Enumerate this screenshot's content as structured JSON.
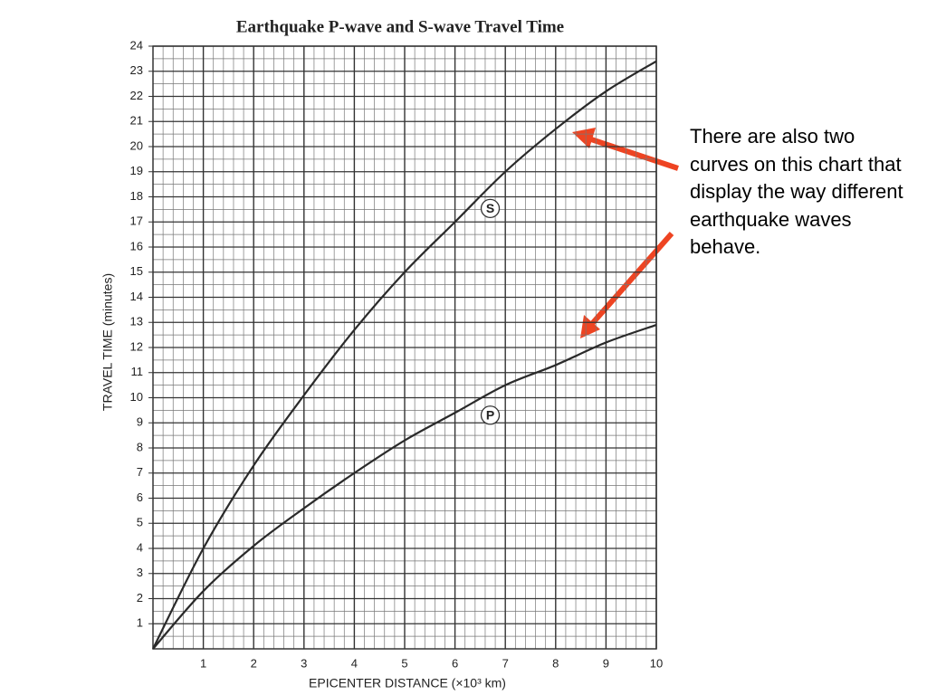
{
  "chart_data": {
    "type": "line",
    "title": "Earthquake P-wave and S-wave Travel Time",
    "x_label": "EPICENTER DISTANCE (×10³ km)",
    "y_label": "TRAVEL TIME (minutes)",
    "x": [
      0,
      1,
      2,
      3,
      4,
      5,
      6,
      7,
      8,
      9,
      10
    ],
    "series": [
      {
        "name": "S",
        "color": "#2a2a2a",
        "values": [
          0,
          4.0,
          7.3,
          10.1,
          12.7,
          15.0,
          17.0,
          19.0,
          20.7,
          22.2,
          23.4
        ]
      },
      {
        "name": "P",
        "color": "#2a2a2a",
        "values": [
          0,
          2.3,
          4.1,
          5.6,
          7.0,
          8.3,
          9.4,
          10.5,
          11.3,
          12.2,
          12.9
        ]
      }
    ],
    "xlim": [
      0,
      10
    ],
    "ylim": [
      0,
      24
    ],
    "xticks": [
      1,
      2,
      3,
      4,
      5,
      6,
      7,
      8,
      9,
      10
    ],
    "yticks": [
      1,
      2,
      3,
      4,
      5,
      6,
      7,
      8,
      9,
      10,
      11,
      12,
      13,
      14,
      15,
      16,
      17,
      18,
      19,
      20,
      21,
      22,
      23,
      24
    ],
    "grid": true,
    "annotation": "There are also two curves on this chart that display the way different earthquake waves behave."
  }
}
